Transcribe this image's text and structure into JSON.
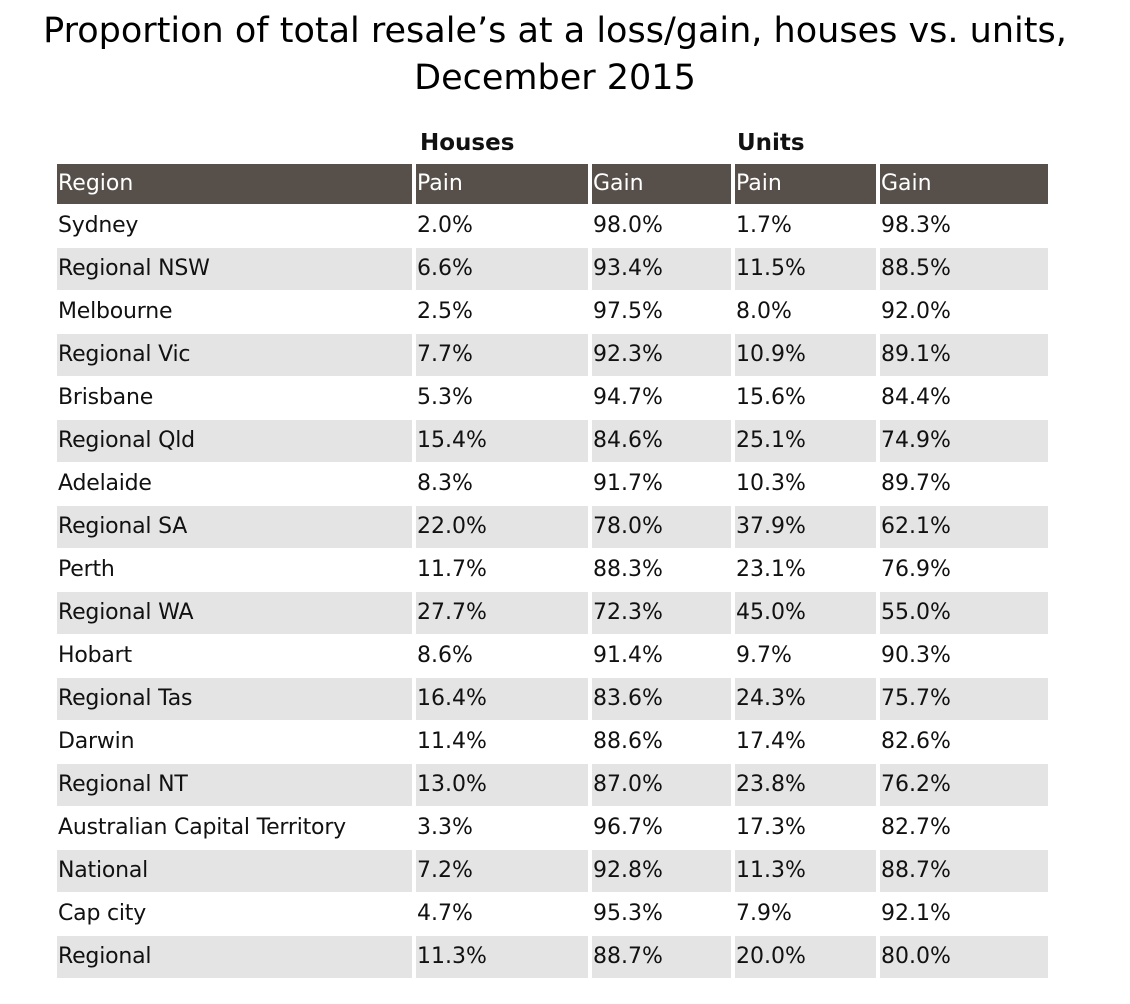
{
  "chart_data": {
    "type": "table",
    "title_line1": "Proportion of total resale’s at a loss/gain, houses vs. units,",
    "title_line2": "December 2015",
    "group_headers": [
      "Houses",
      "Units"
    ],
    "columns": [
      "Region",
      "Pain",
      "Gain",
      "Pain",
      "Gain"
    ],
    "rows": [
      [
        "Sydney",
        "2.0%",
        "98.0%",
        "1.7%",
        "98.3%"
      ],
      [
        "Regional NSW",
        "6.6%",
        "93.4%",
        "11.5%",
        "88.5%"
      ],
      [
        "Melbourne",
        "2.5%",
        "97.5%",
        "8.0%",
        "92.0%"
      ],
      [
        "Regional Vic",
        "7.7%",
        "92.3%",
        "10.9%",
        "89.1%"
      ],
      [
        "Brisbane",
        "5.3%",
        "94.7%",
        "15.6%",
        "84.4%"
      ],
      [
        "Regional Qld",
        "15.4%",
        "84.6%",
        "25.1%",
        "74.9%"
      ],
      [
        "Adelaide",
        "8.3%",
        "91.7%",
        "10.3%",
        "89.7%"
      ],
      [
        "Regional SA",
        "22.0%",
        "78.0%",
        "37.9%",
        "62.1%"
      ],
      [
        "Perth",
        "11.7%",
        "88.3%",
        "23.1%",
        "76.9%"
      ],
      [
        "Regional WA",
        "27.7%",
        "72.3%",
        "45.0%",
        "55.0%"
      ],
      [
        "Hobart",
        "8.6%",
        "91.4%",
        "9.7%",
        "90.3%"
      ],
      [
        "Regional Tas",
        "16.4%",
        "83.6%",
        "24.3%",
        "75.7%"
      ],
      [
        "Darwin",
        "11.4%",
        "88.6%",
        "17.4%",
        "82.6%"
      ],
      [
        "Regional NT",
        "13.0%",
        "87.0%",
        "23.8%",
        "76.2%"
      ],
      [
        "Australian Capital Territory",
        "3.3%",
        "96.7%",
        "17.3%",
        "82.7%"
      ],
      [
        "National",
        "7.2%",
        "92.8%",
        "11.3%",
        "88.7%"
      ],
      [
        "Cap city",
        "4.7%",
        "95.3%",
        "7.9%",
        "92.1%"
      ],
      [
        "Regional",
        "11.3%",
        "88.7%",
        "20.0%",
        "80.0%"
      ]
    ],
    "colors": {
      "header_bg": "#574f49",
      "header_text": "#ffffff",
      "shaded_row_bg": "#e5e4e4"
    }
  }
}
